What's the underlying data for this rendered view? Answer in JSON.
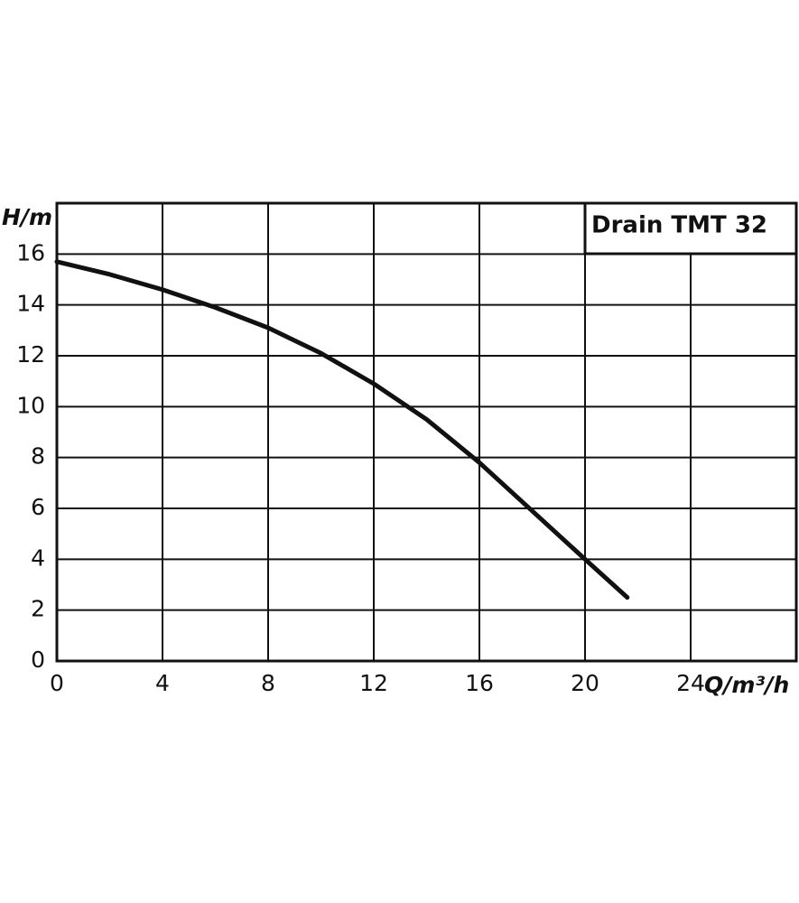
{
  "chart_data": {
    "type": "line",
    "title": "Drain TMT 32",
    "x_label": "Q/m³/h",
    "y_label": "H/m",
    "x": [
      0,
      2,
      4,
      6,
      8,
      10,
      12,
      14,
      16,
      18,
      20,
      21.6
    ],
    "series": [
      {
        "color": "#111111",
        "values": [
          15.7,
          15.2,
          14.6,
          13.9,
          13.1,
          12.1,
          10.9,
          9.5,
          7.8,
          5.9,
          4.0,
          2.5
        ]
      }
    ],
    "xlim": [
      0,
      28
    ],
    "ylim": [
      0,
      18
    ],
    "xticks": [
      0,
      4,
      8,
      12,
      16,
      20,
      24
    ],
    "yticks": [
      0,
      2,
      4,
      6,
      8,
      10,
      12,
      14,
      16
    ],
    "grid": true
  }
}
